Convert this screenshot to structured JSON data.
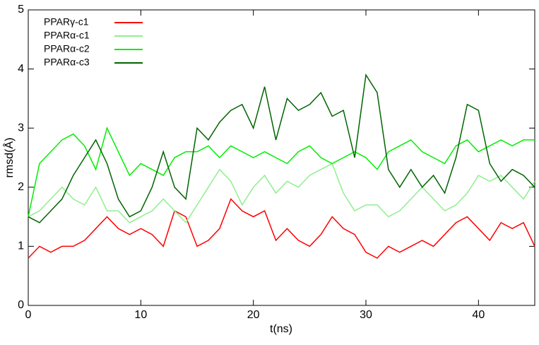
{
  "chart_data": {
    "type": "line",
    "x_label": "t(ns)",
    "y_label": "rmsd(Å)",
    "x": [
      0,
      1,
      2,
      3,
      4,
      5,
      6,
      7,
      8,
      9,
      10,
      11,
      12,
      13,
      14,
      15,
      16,
      17,
      18,
      19,
      20,
      21,
      22,
      23,
      24,
      25,
      26,
      27,
      28,
      29,
      30,
      31,
      32,
      33,
      34,
      35,
      36,
      37,
      38,
      39,
      40,
      41,
      42,
      43,
      44,
      45
    ],
    "xlim": [
      0,
      45
    ],
    "ylim": [
      0,
      5
    ],
    "xticks": [
      0,
      10,
      20,
      30,
      40
    ],
    "yticks": [
      0,
      1,
      2,
      3,
      4,
      5
    ],
    "legend": "upper-left",
    "series": [
      {
        "name": "PPARγ-c1",
        "color": "#ff0000",
        "values": [
          0.8,
          1.0,
          0.9,
          1.0,
          1.0,
          1.1,
          1.3,
          1.5,
          1.3,
          1.2,
          1.3,
          1.2,
          1.0,
          1.6,
          1.5,
          1.0,
          1.1,
          1.3,
          1.8,
          1.6,
          1.5,
          1.6,
          1.1,
          1.3,
          1.1,
          1.0,
          1.2,
          1.5,
          1.3,
          1.2,
          0.9,
          0.8,
          1.0,
          0.9,
          1.0,
          1.1,
          1.0,
          1.2,
          1.4,
          1.5,
          1.3,
          1.1,
          1.4,
          1.3,
          1.4,
          1.0
        ]
      },
      {
        "name": "PPARα-c1",
        "color": "#90ee90",
        "values": [
          1.5,
          1.6,
          1.8,
          2.0,
          1.8,
          1.7,
          2.0,
          1.6,
          1.6,
          1.4,
          1.5,
          1.6,
          1.8,
          1.6,
          1.4,
          1.7,
          2.0,
          2.3,
          2.1,
          1.7,
          2.0,
          2.2,
          1.9,
          2.1,
          2.0,
          2.2,
          2.3,
          2.4,
          1.9,
          1.6,
          1.7,
          1.7,
          1.5,
          1.6,
          1.8,
          2.0,
          1.8,
          1.6,
          1.7,
          1.9,
          2.2,
          2.1,
          2.2,
          2.0,
          1.8,
          2.1
        ]
      },
      {
        "name": "PPARα-c2",
        "color": "#00ee00",
        "values": [
          1.5,
          2.4,
          2.6,
          2.8,
          2.9,
          2.7,
          2.3,
          3.0,
          2.6,
          2.2,
          2.4,
          2.3,
          2.2,
          2.5,
          2.6,
          2.6,
          2.7,
          2.5,
          2.7,
          2.6,
          2.5,
          2.6,
          2.5,
          2.4,
          2.6,
          2.7,
          2.5,
          2.4,
          2.5,
          2.6,
          2.5,
          2.3,
          2.6,
          2.7,
          2.8,
          2.6,
          2.5,
          2.4,
          2.7,
          2.8,
          2.6,
          2.7,
          2.8,
          2.7,
          2.8,
          2.8
        ]
      },
      {
        "name": "PPARα-c3",
        "color": "#006400",
        "values": [
          1.5,
          1.4,
          1.6,
          1.8,
          2.2,
          2.5,
          2.8,
          2.4,
          1.8,
          1.5,
          1.6,
          2.0,
          2.6,
          2.0,
          1.8,
          3.0,
          2.8,
          3.1,
          3.3,
          3.4,
          3.0,
          3.7,
          2.8,
          3.5,
          3.3,
          3.4,
          3.6,
          3.2,
          3.3,
          2.5,
          3.9,
          3.6,
          2.3,
          2.0,
          2.3,
          2.0,
          2.2,
          1.9,
          2.5,
          3.4,
          3.3,
          2.4,
          2.1,
          2.3,
          2.2,
          2.0
        ]
      }
    ]
  }
}
